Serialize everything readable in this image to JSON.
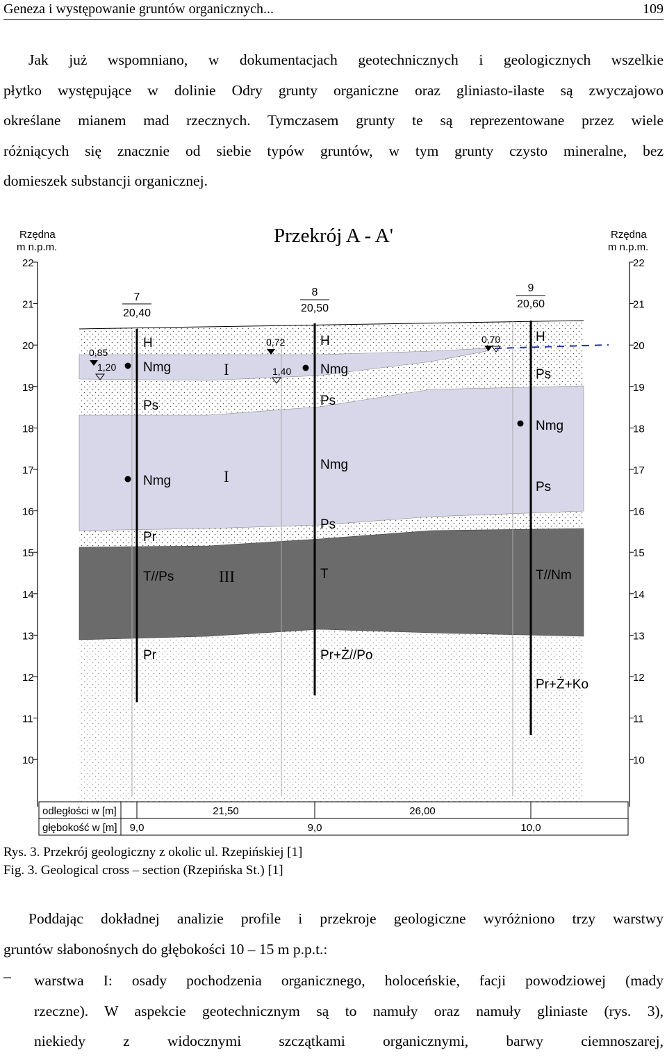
{
  "header": {
    "title": "Geneza i występowanie gruntów organicznych...",
    "page_number": "109"
  },
  "intro": [
    "Jak już wspomniano, w dokumentacjach geotechnicznych i geologicznych wszelkie",
    "płytko występujące w dolinie Odry grunty organiczne oraz gliniasto-ilaste są zwyczajowo",
    "określane mianem mad rzecznych. Tymczasem grunty te są reprezentowane przez wiele",
    "różniących się znacznie od siebie typów gruntów, w tym grunty czysto mineralne, bez",
    "domieszek substancji organicznej."
  ],
  "figure": {
    "title": "Przekrój A - A'",
    "axis_label_left": [
      "Rzędna",
      "m n.p.m."
    ],
    "axis_label_right": [
      "Rzędna",
      "m n.p.m."
    ],
    "axis_ticks": [
      "22",
      "21",
      "20",
      "19",
      "18",
      "17",
      "16",
      "15",
      "14",
      "13",
      "12",
      "11",
      "10"
    ],
    "boreholes": [
      {
        "number": "7",
        "elevation": "20,40",
        "water_level_1": "0,85",
        "water_level_2": "1,20",
        "depth": "9,0",
        "layers": [
          "H",
          "Nmg",
          "Ps",
          "Nmg",
          "Pr",
          "T//Ps",
          "Pr"
        ]
      },
      {
        "number": "8",
        "elevation": "20,50",
        "water_level_1": "0,72",
        "water_level_2": "1,40",
        "depth": "9,0",
        "layers": [
          "H",
          "Nmg",
          "Ps",
          "Nmg",
          "Ps",
          "T",
          "Pr+Ż//Po"
        ]
      },
      {
        "number": "9",
        "elevation": "20,60",
        "water_level_1": "0,70",
        "depth": "10,0",
        "layers": [
          "H",
          "Ps",
          "Nmg",
          "Ps",
          "T//Nm",
          "Pr+Ż+Ko"
        ]
      }
    ],
    "layer_labels": [
      "I",
      "I",
      "III"
    ],
    "distance_label": "odległości w [m]",
    "distances": [
      "21,50",
      "26,00"
    ],
    "depth_label": "głębokość w [m]"
  },
  "captions": {
    "pl": "Rys. 3. Przekrój geologiczny z okolic ul. Rzepińskiej [1]",
    "en": "Fig. 3. Geological cross – section (Rzepińska St.) [1]"
  },
  "analysis": [
    "Poddając dokładnej analizie profile i przekroje geologiczne wyróżniono trzy warstwy",
    "gruntów słabonośnych do głębokości 10 – 15 m p.p.t.:"
  ],
  "list_item": {
    "dash": "–",
    "lines": [
      "warstwa I: osady pochodzenia organicznego, holoceńskie, facji powodziowej (mady",
      "rzeczne). W aspekcie geotechnicznym są to namuły oraz namuły gliniaste (rys. 3),",
      "niekiedy z widocznymi szczątkami organicznymi, barwy ciemnoszarej,"
    ]
  }
}
